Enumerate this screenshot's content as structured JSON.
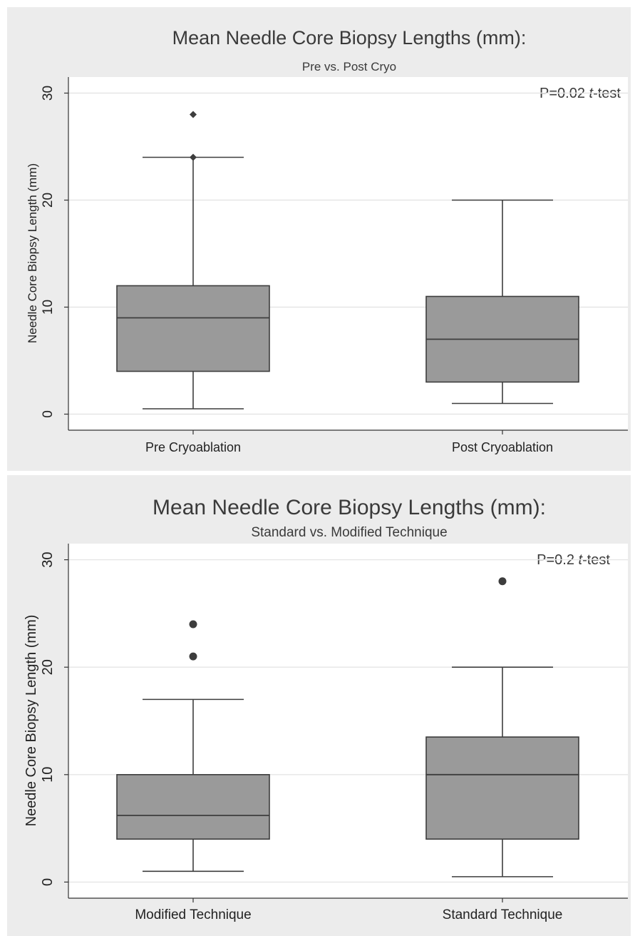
{
  "chart_data": [
    {
      "type": "box",
      "title": "Mean Needle Core Biopsy Lengths (mm):",
      "subtitle": "Pre vs. Post Cryo",
      "ylabel": "Needle Core Biopsy Length (mm)",
      "xlabel": "",
      "ylim": [
        -1.5,
        31.5
      ],
      "yticks": [
        0,
        10,
        20,
        30
      ],
      "ytick_labels": [
        "0",
        "10",
        "20",
        "30"
      ],
      "grid": true,
      "annotation": {
        "prefix": "P=0.02 ",
        "italic": "t",
        "suffix": "-test"
      },
      "outlier_marker": "diamond",
      "categories": [
        "Pre Cryoablation",
        "Post Cryoablation"
      ],
      "boxes": [
        {
          "category": "Pre Cryoablation",
          "whisker_low": 0.5,
          "q1": 4,
          "median": 9,
          "q3": 12,
          "whisker_high": 24,
          "outliers": [
            24,
            28
          ]
        },
        {
          "category": "Post Cryoablation",
          "whisker_low": 1,
          "q1": 3,
          "median": 7,
          "q3": 11,
          "whisker_high": 20,
          "outliers": []
        }
      ]
    },
    {
      "type": "box",
      "title": "Mean Needle Core Biopsy Lengths (mm):",
      "subtitle": "Standard vs. Modified Technique",
      "ylabel": "Needle Core Biopsy Length (mm)",
      "xlabel": "",
      "ylim": [
        -1.5,
        31.5
      ],
      "yticks": [
        0,
        10,
        20,
        30
      ],
      "ytick_labels": [
        "0",
        "10",
        "20",
        "30"
      ],
      "grid": true,
      "annotation": {
        "prefix": "P=0.2 ",
        "italic": "t",
        "suffix": "-test"
      },
      "outlier_marker": "circle",
      "categories": [
        "Modified Technique",
        "Standard Technique"
      ],
      "boxes": [
        {
          "category": "Modified Technique",
          "whisker_low": 1,
          "q1": 4,
          "median": 6.2,
          "q3": 10,
          "whisker_high": 17,
          "outliers": [
            21,
            24
          ]
        },
        {
          "category": "Standard Technique",
          "whisker_low": 0.5,
          "q1": 4,
          "median": 10,
          "q3": 13.5,
          "whisker_high": 20,
          "outliers": [
            28
          ]
        }
      ]
    }
  ]
}
